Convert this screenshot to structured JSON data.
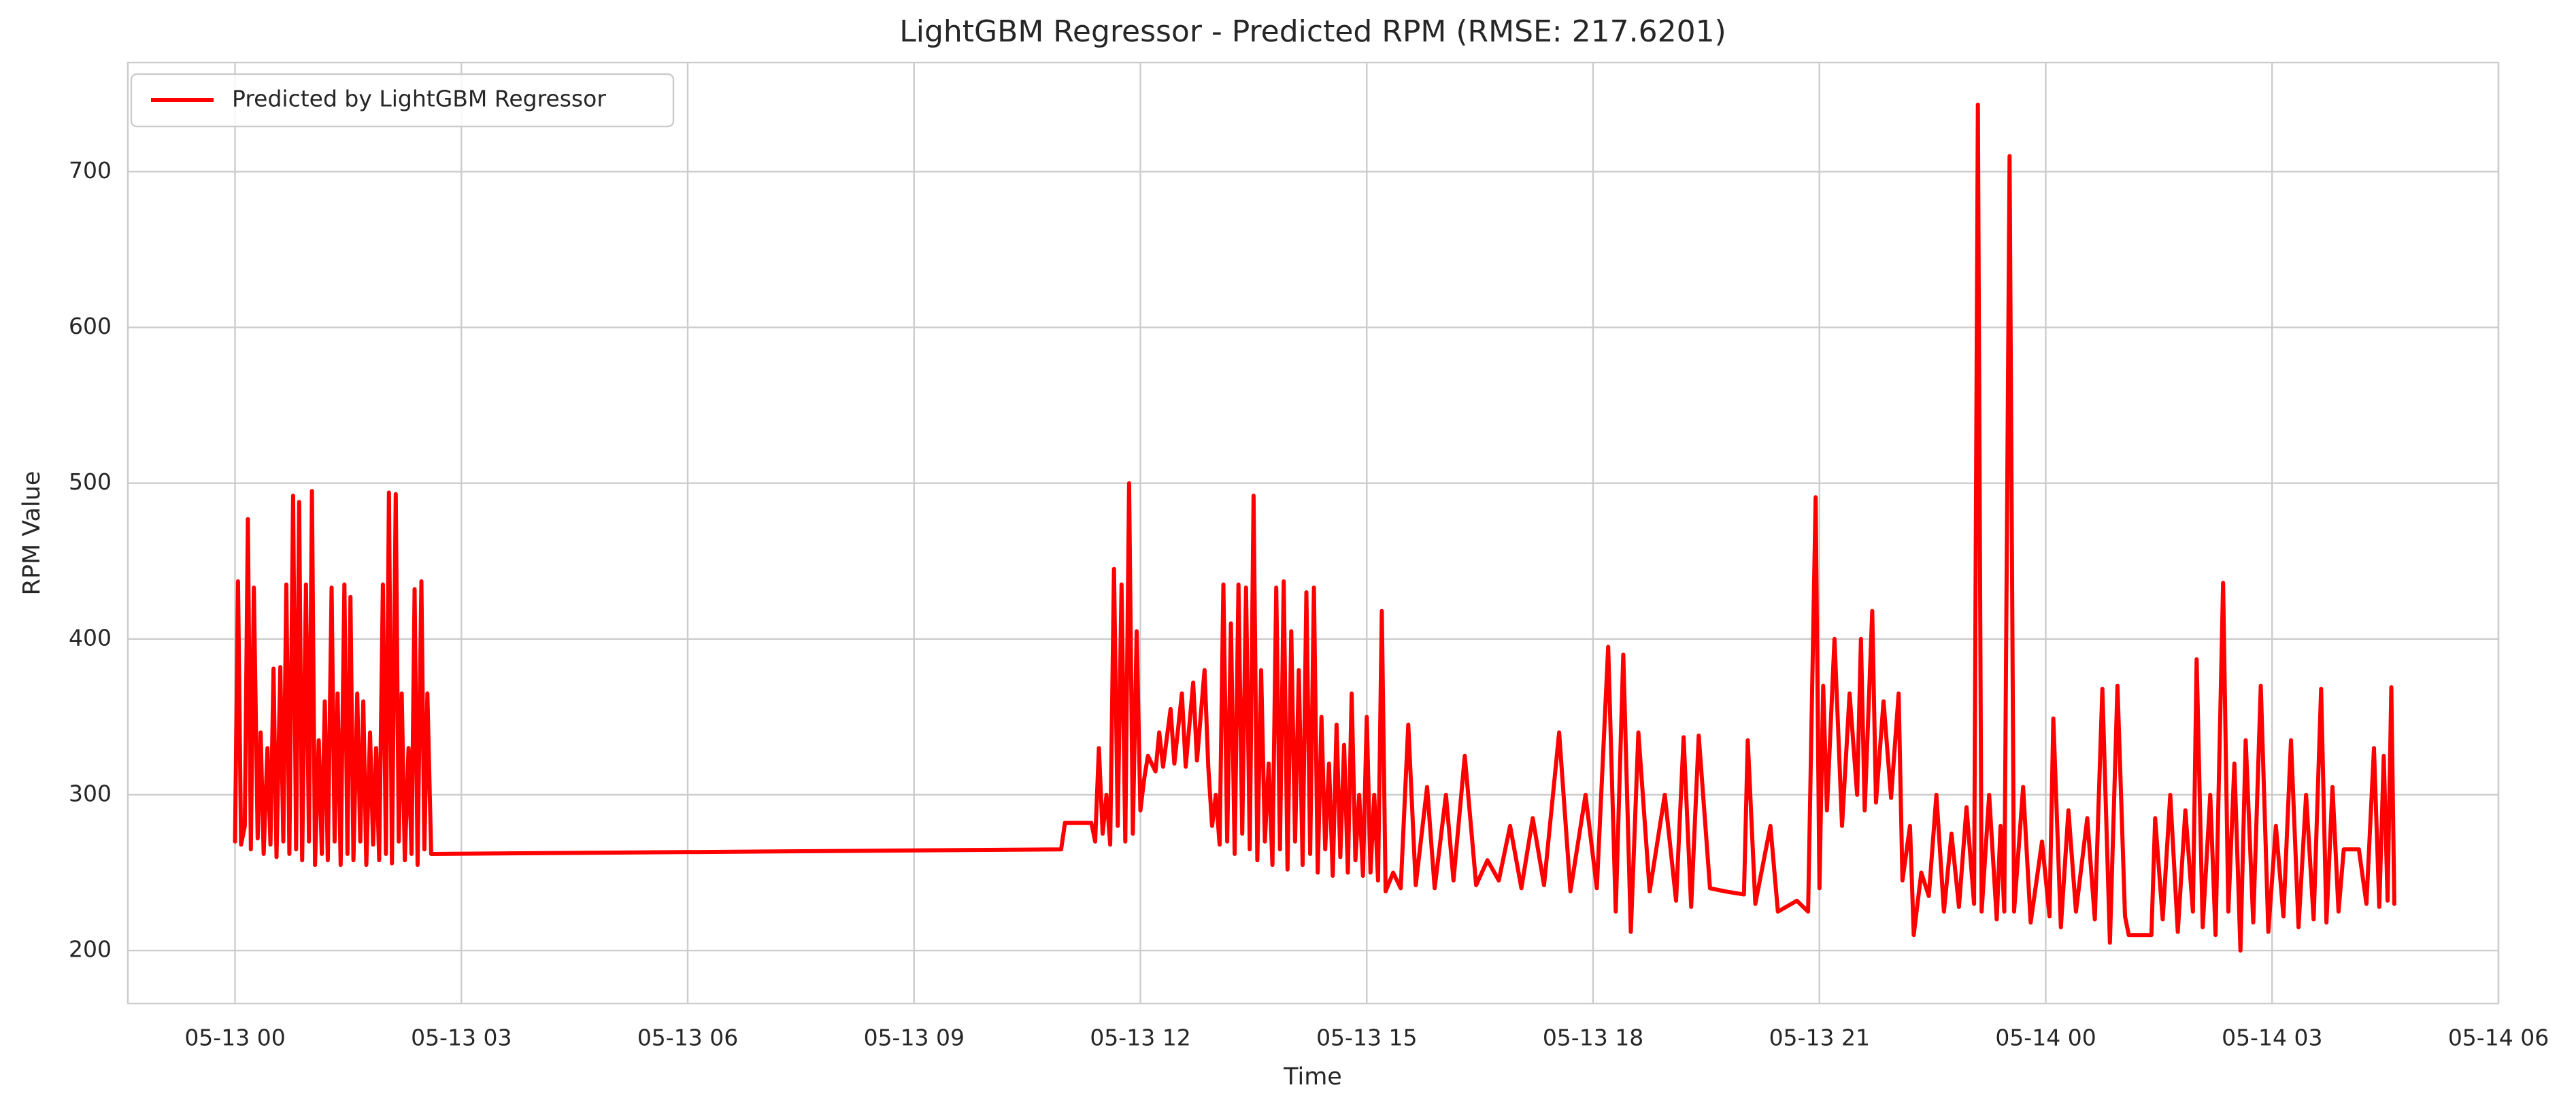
{
  "chart_data": {
    "type": "line",
    "title": "LightGBM Regressor - Predicted RPM (RMSE: 217.6201)",
    "xlabel": "Time",
    "ylabel": "RPM Value",
    "x": [
      0,
      0.04,
      0.08,
      0.13,
      0.17,
      0.21,
      0.25,
      0.3,
      0.34,
      0.38,
      0.43,
      0.47,
      0.51,
      0.55,
      0.6,
      0.64,
      0.68,
      0.72,
      0.77,
      0.81,
      0.85,
      0.89,
      0.94,
      0.98,
      1.02,
      1.06,
      1.11,
      1.15,
      1.19,
      1.23,
      1.28,
      1.32,
      1.36,
      1.4,
      1.45,
      1.49,
      1.53,
      1.57,
      1.62,
      1.66,
      1.7,
      1.74,
      1.79,
      1.83,
      1.87,
      1.91,
      1.96,
      2,
      2.04,
      2.08,
      2.13,
      2.17,
      2.21,
      2.25,
      2.3,
      2.34,
      2.38,
      2.42,
      2.47,
      2.51,
      2.55,
      2.6,
      10.95,
      11,
      11.35,
      11.4,
      11.45,
      11.5,
      11.55,
      11.6,
      11.65,
      11.7,
      11.75,
      11.8,
      11.85,
      11.9,
      11.95,
      12,
      12.05,
      12.1,
      12.2,
      12.25,
      12.3,
      12.4,
      12.45,
      12.55,
      12.6,
      12.7,
      12.75,
      12.85,
      12.9,
      12.95,
      13,
      13.05,
      13.1,
      13.15,
      13.2,
      13.25,
      13.3,
      13.35,
      13.4,
      13.45,
      13.5,
      13.55,
      13.6,
      13.65,
      13.7,
      13.75,
      13.8,
      13.85,
      13.9,
      13.95,
      14,
      14.05,
      14.1,
      14.15,
      14.2,
      14.25,
      14.3,
      14.35,
      14.4,
      14.45,
      14.5,
      14.55,
      14.6,
      14.65,
      14.7,
      14.75,
      14.8,
      14.85,
      14.9,
      14.95,
      15,
      15.05,
      15.1,
      15.15,
      15.2,
      15.25,
      15.35,
      15.45,
      15.55,
      15.65,
      15.8,
      15.9,
      16.05,
      16.15,
      16.3,
      16.45,
      16.6,
      16.75,
      16.9,
      17.05,
      17.2,
      17.35,
      17.55,
      17.7,
      17.9,
      18.05,
      18.2,
      18.3,
      18.4,
      18.5,
      18.6,
      18.75,
      18.95,
      19.1,
      19.2,
      19.3,
      19.4,
      19.55,
      19.75,
      20,
      20.05,
      20.15,
      20.35,
      20.45,
      20.7,
      20.85,
      20.95,
      21,
      21.05,
      21.1,
      21.2,
      21.3,
      21.4,
      21.5,
      21.55,
      21.6,
      21.7,
      21.75,
      21.85,
      21.95,
      22.05,
      22.1,
      22.2,
      22.25,
      22.35,
      22.45,
      22.55,
      22.65,
      22.75,
      22.85,
      22.95,
      23.05,
      23.1,
      23.15,
      23.25,
      23.35,
      23.4,
      23.45,
      23.52,
      23.58,
      23.7,
      23.8,
      23.95,
      24.05,
      24.1,
      24.2,
      24.3,
      24.4,
      24.55,
      24.65,
      24.75,
      24.85,
      24.95,
      25.05,
      25.1,
      25.4,
      25.45,
      25.55,
      25.65,
      25.75,
      25.85,
      25.95,
      26,
      26.08,
      26.18,
      26.25,
      26.35,
      26.42,
      26.5,
      26.58,
      26.65,
      26.75,
      26.85,
      26.95,
      27.05,
      27.15,
      27.25,
      27.35,
      27.45,
      27.55,
      27.65,
      27.72,
      27.8,
      27.88,
      27.95,
      28.15,
      28.25,
      28.35,
      28.42,
      28.48,
      28.53,
      28.58,
      28.62
    ],
    "series": [
      {
        "name": "Predicted by LightGBM Regressor",
        "color": "#ff0000",
        "values": [
          270,
          437,
          268,
          280,
          477,
          265,
          433,
          272,
          340,
          262,
          330,
          268,
          381,
          260,
          382,
          270,
          435,
          262,
          492,
          265,
          488,
          258,
          435,
          270,
          495,
          255,
          335,
          262,
          360,
          258,
          433,
          270,
          365,
          255,
          435,
          262,
          427,
          258,
          365,
          270,
          360,
          255,
          340,
          268,
          330,
          258,
          435,
          262,
          494,
          256,
          493,
          270,
          365,
          258,
          330,
          262,
          432,
          255,
          437,
          265,
          365,
          262,
          265,
          282,
          282,
          270,
          330,
          275,
          300,
          268,
          445,
          280,
          435,
          270,
          500,
          275,
          405,
          290,
          310,
          325,
          315,
          340,
          318,
          355,
          320,
          365,
          318,
          372,
          322,
          380,
          318,
          280,
          300,
          268,
          435,
          270,
          410,
          262,
          435,
          275,
          433,
          265,
          492,
          258,
          380,
          270,
          320,
          255,
          433,
          265,
          437,
          252,
          405,
          270,
          380,
          255,
          430,
          262,
          433,
          250,
          350,
          265,
          320,
          248,
          345,
          260,
          332,
          250,
          365,
          258,
          300,
          248,
          350,
          250,
          300,
          245,
          418,
          238,
          250,
          240,
          345,
          242,
          305,
          240,
          300,
          245,
          325,
          242,
          258,
          245,
          280,
          240,
          285,
          242,
          340,
          238,
          300,
          240,
          395,
          225,
          390,
          212,
          340,
          238,
          300,
          232,
          337,
          228,
          338,
          240,
          238,
          236,
          335,
          230,
          280,
          225,
          232,
          225,
          491,
          240,
          370,
          290,
          400,
          280,
          365,
          300,
          400,
          290,
          418,
          295,
          360,
          298,
          365,
          245,
          280,
          210,
          250,
          235,
          300,
          225,
          275,
          228,
          292,
          230,
          743,
          225,
          300,
          220,
          280,
          225,
          710,
          225,
          305,
          218,
          270,
          222,
          349,
          215,
          290,
          225,
          285,
          220,
          368,
          205,
          370,
          222,
          210,
          210,
          285,
          220,
          300,
          212,
          290,
          225,
          387,
          215,
          300,
          210,
          436,
          225,
          320,
          200,
          335,
          218,
          370,
          212,
          280,
          222,
          335,
          215,
          300,
          220,
          368,
          218,
          305,
          225,
          265,
          265,
          230,
          330,
          228,
          325,
          232,
          369,
          230
        ]
      }
    ],
    "xlim": [
      -1.42,
      30
    ],
    "xticks": [
      {
        "value": 0,
        "label": "05-13 00"
      },
      {
        "value": 3,
        "label": "05-13 03"
      },
      {
        "value": 6,
        "label": "05-13 06"
      },
      {
        "value": 9,
        "label": "05-13 09"
      },
      {
        "value": 12,
        "label": "05-13 12"
      },
      {
        "value": 15,
        "label": "05-13 15"
      },
      {
        "value": 18,
        "label": "05-13 18"
      },
      {
        "value": 21,
        "label": "05-13 21"
      },
      {
        "value": 24,
        "label": "05-14 00"
      },
      {
        "value": 27,
        "label": "05-14 03"
      },
      {
        "value": 30,
        "label": "05-14 06"
      }
    ],
    "ylim": [
      166,
      770
    ],
    "yticks": [
      200,
      300,
      400,
      500,
      600,
      700
    ],
    "grid": true,
    "legend": "upper left"
  }
}
